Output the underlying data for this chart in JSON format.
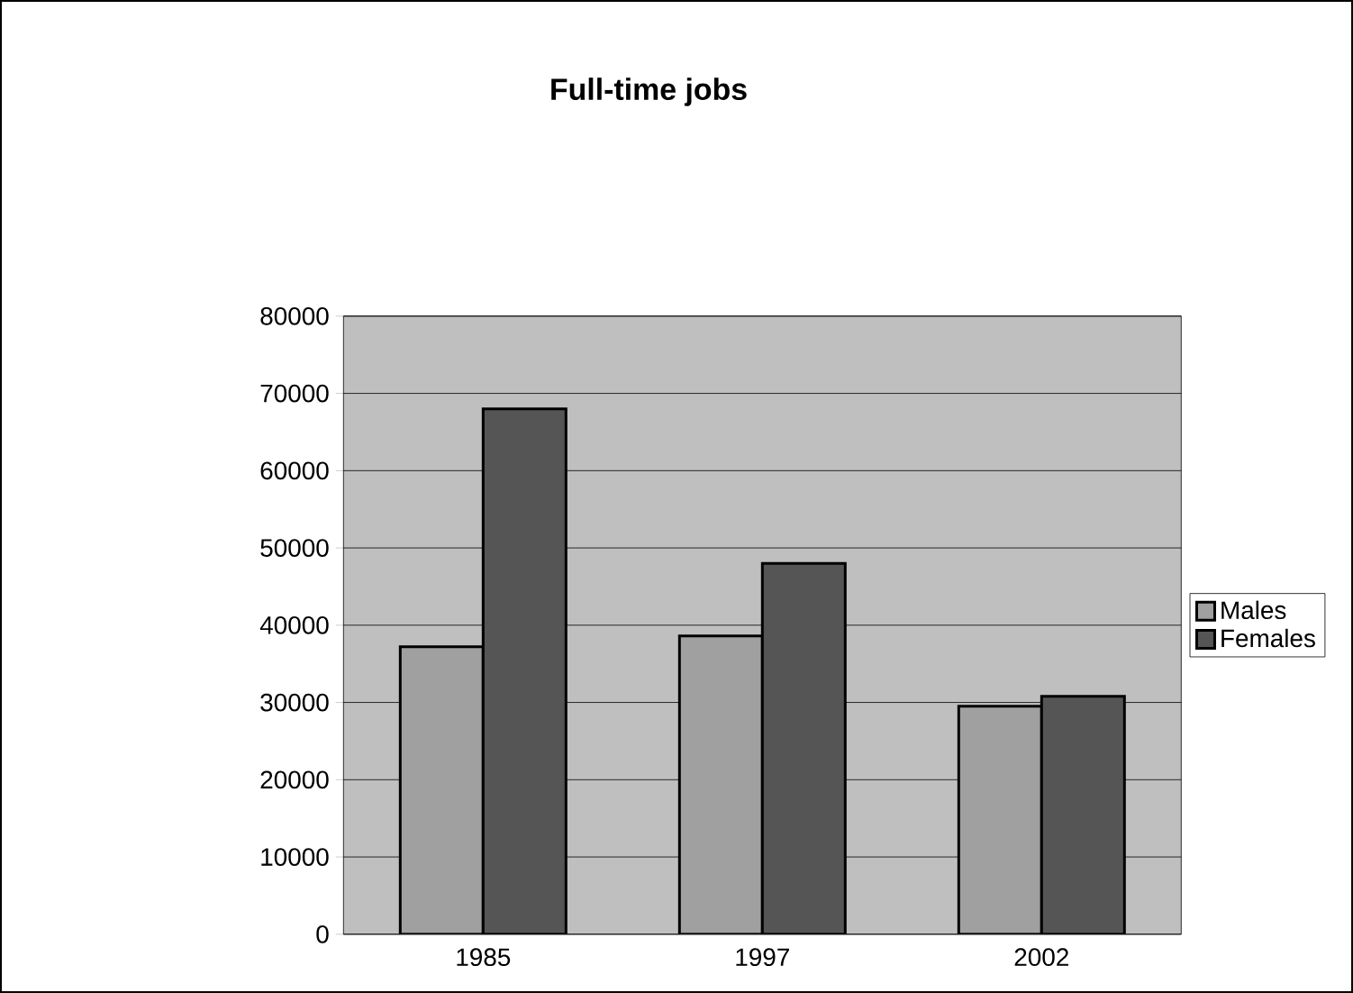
{
  "chart_data": {
    "type": "bar",
    "title": "Full-time jobs",
    "categories": [
      "1985",
      "1997",
      "2002"
    ],
    "series": [
      {
        "name": "Males",
        "color": "#a0a0a0",
        "values": [
          37200,
          38600,
          29500
        ]
      },
      {
        "name": "Females",
        "color": "#555555",
        "values": [
          68000,
          48000,
          30800
        ]
      }
    ],
    "ylim": [
      0,
      80000
    ],
    "yticks": [
      0,
      10000,
      20000,
      30000,
      40000,
      50000,
      60000,
      70000,
      80000
    ],
    "grid": "y",
    "legend": "right"
  }
}
